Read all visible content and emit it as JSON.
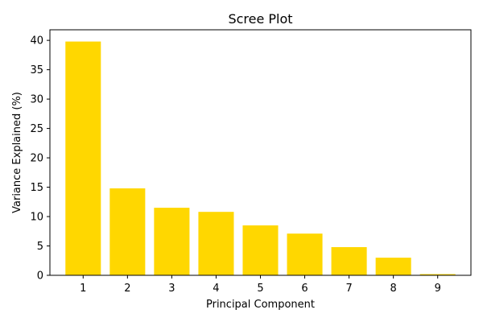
{
  "chart_data": {
    "type": "bar",
    "title": "Scree Plot",
    "xlabel": "Principal Component",
    "ylabel": "Variance Explained (%)",
    "categories": [
      "1",
      "2",
      "3",
      "4",
      "5",
      "6",
      "7",
      "8",
      "9"
    ],
    "values": [
      39.8,
      14.8,
      11.5,
      10.8,
      8.5,
      7.1,
      4.8,
      3.0,
      0.2
    ],
    "ylim": [
      0,
      41.8
    ],
    "yticks": [
      0,
      5,
      10,
      15,
      20,
      25,
      30,
      35,
      40
    ],
    "grid": false,
    "colors": {
      "bar": "#FFD700",
      "axis": "#000000"
    }
  }
}
